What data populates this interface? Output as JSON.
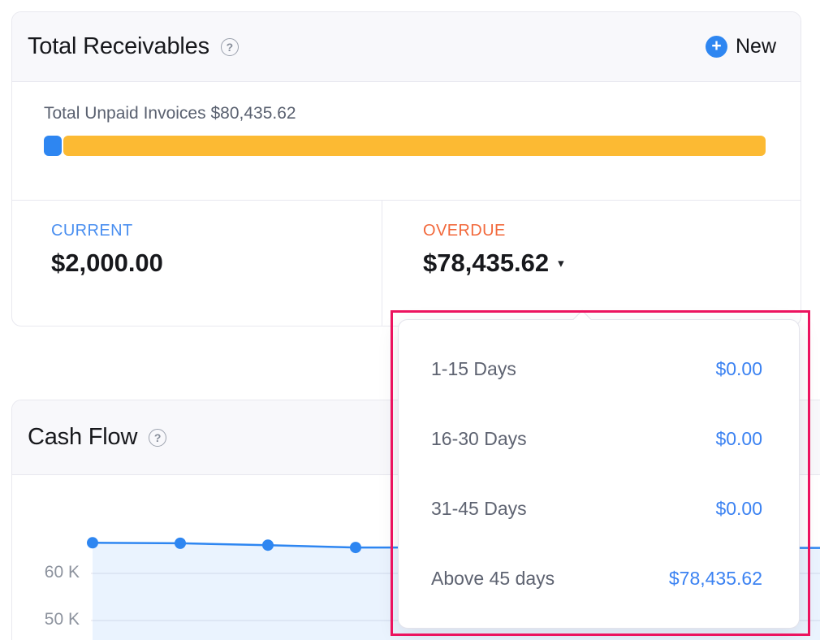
{
  "receivables": {
    "title": "Total Receivables",
    "help_glyph": "?",
    "new_button": {
      "plus": "+",
      "label": "New"
    },
    "unpaid": {
      "label": "Total Unpaid Invoices",
      "amount": "$80,435.62"
    },
    "progress": {
      "current_color": "#2e86f1",
      "overdue_color": "#fcba33",
      "current_pct": 2.5,
      "overdue_pct": 97.5
    },
    "current": {
      "label": "CURRENT",
      "amount": "$2,000.00"
    },
    "overdue": {
      "label": "OVERDUE",
      "amount": "$78,435.62",
      "caret": "▾"
    }
  },
  "aging_dropdown": {
    "rows": [
      {
        "label": "1-15 Days",
        "value": "$0.00"
      },
      {
        "label": "16-30 Days",
        "value": "$0.00"
      },
      {
        "label": "31-45 Days",
        "value": "$0.00"
      },
      {
        "label": "Above 45 days",
        "value": "$78,435.62"
      }
    ],
    "highlight_color": "#ec135f"
  },
  "cashflow": {
    "title": "Cash Flow",
    "help_glyph": "?"
  },
  "chart_data": {
    "type": "area",
    "title": "Cash Flow",
    "x": [
      1,
      2,
      3,
      4
    ],
    "x_tick_labels_visible": false,
    "values_k": [
      66.5,
      66.4,
      66.0,
      65.5
    ],
    "yticks_k": [
      60,
      50
    ],
    "ytick_labels": [
      "60 K",
      "50 K"
    ],
    "ylim_visible_k": [
      46,
      72
    ],
    "grid": true,
    "legend": false,
    "line_color": "#2e86f1",
    "marker_color": "#2e86f1",
    "fill_color": "rgba(46,134,241,0.10)",
    "gridline_color": "#ececf2"
  },
  "colors": {
    "accent_blue": "#2e86f1",
    "link_blue": "#3b82f2",
    "overdue_orange": "#f2693c",
    "bar_orange": "#fcba33",
    "annotation_pink": "#ec135f",
    "header_bg": "#f8f8fb",
    "card_border": "#e8e8ef"
  }
}
